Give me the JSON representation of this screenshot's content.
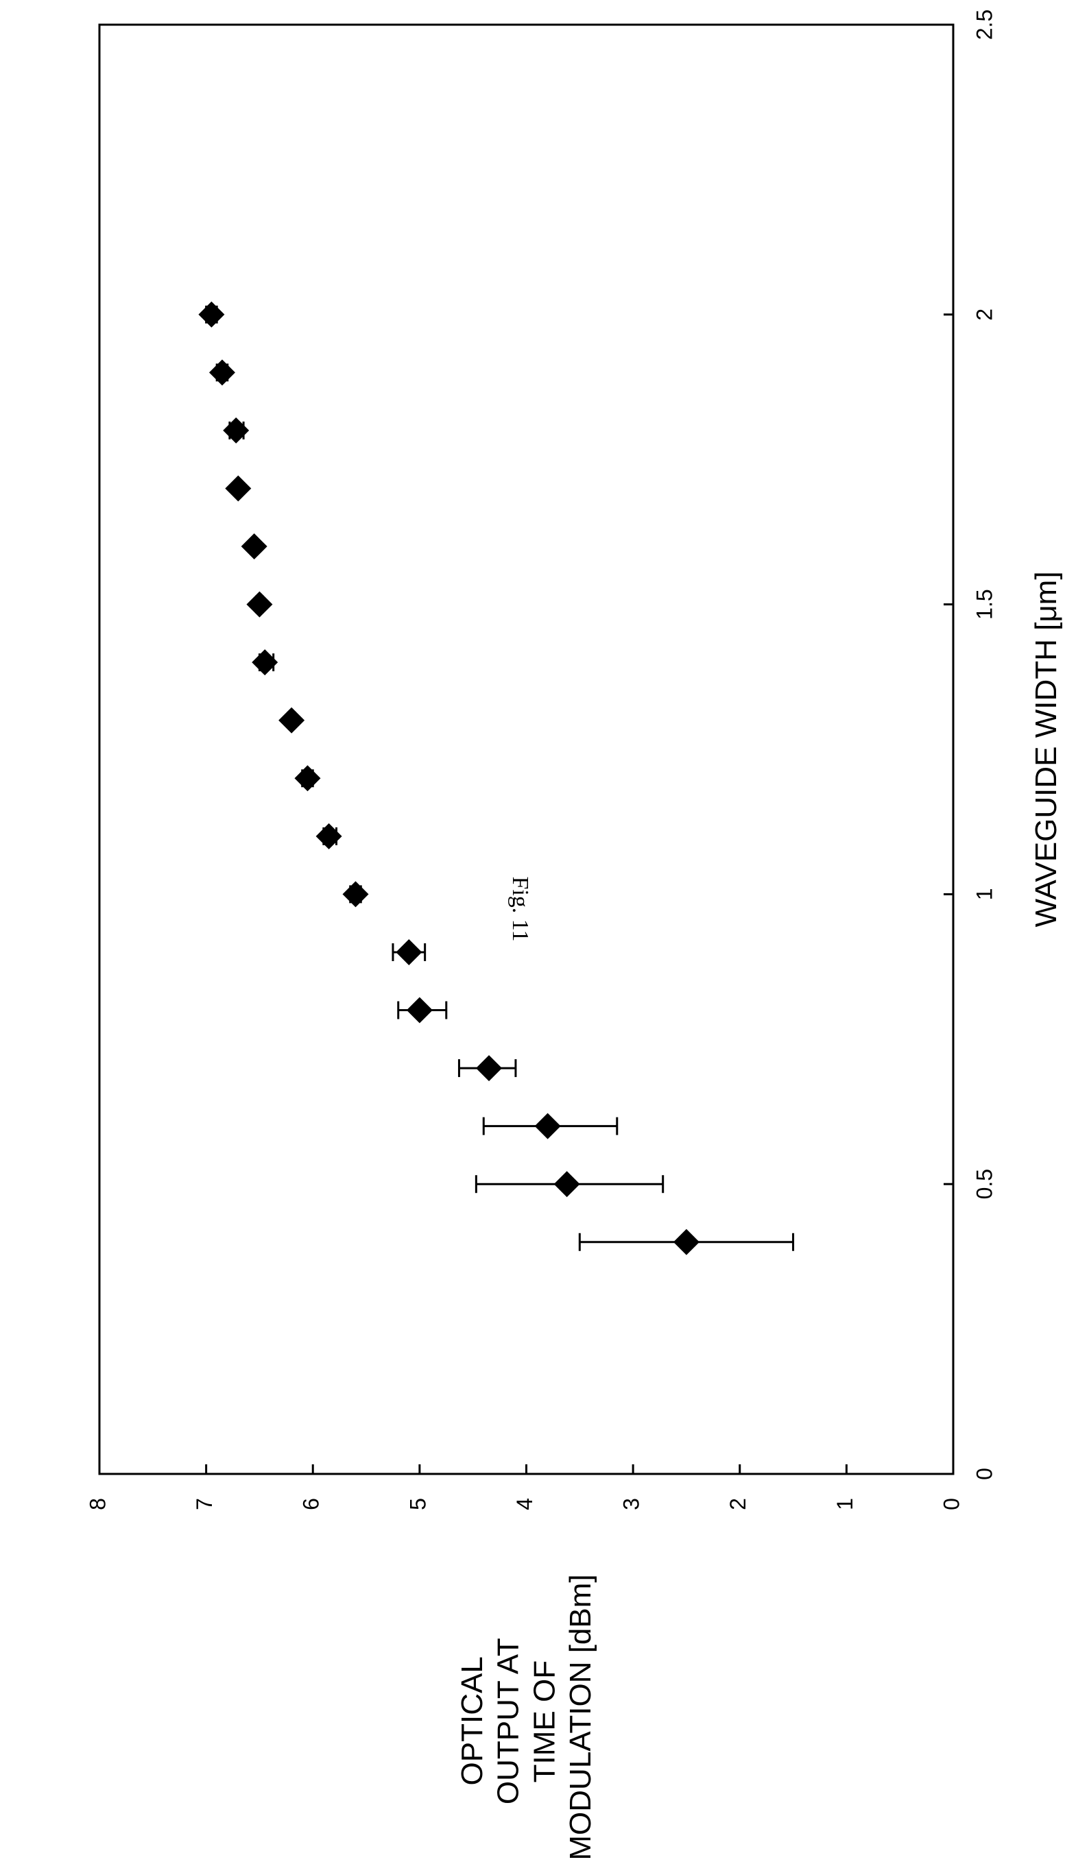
{
  "figure": {
    "title": "Fig. 11"
  },
  "chart_data": {
    "type": "scatter",
    "orientation": "rotated-90-clockwise",
    "title": "",
    "xlabel": "WAVEGUIDE WIDTH [μm]",
    "ylabel_lines": [
      "OPTICAL",
      "OUTPUT AT",
      "TIME OF",
      "MODULATION [dBm]"
    ],
    "xlim": [
      0,
      2.5
    ],
    "ylim": [
      0,
      8
    ],
    "x_ticks": [
      0,
      0.5,
      1,
      1.5,
      2,
      2.5
    ],
    "x_tick_labels": [
      "0",
      "0.5",
      "1",
      "1.5",
      "2",
      "2.5"
    ],
    "y_ticks": [
      0,
      1,
      2,
      3,
      4,
      5,
      6,
      7,
      8
    ],
    "y_tick_labels": [
      "0",
      "1",
      "2",
      "3",
      "4",
      "5",
      "6",
      "7",
      "8"
    ],
    "grid": false,
    "legend": "none",
    "marker": "diamond",
    "series": [
      {
        "points": [
          {
            "x": 0.4,
            "y": 2.5,
            "err_low": 1.5,
            "err_high": 3.5
          },
          {
            "x": 0.5,
            "y": 3.62,
            "err_low": 2.72,
            "err_high": 4.47
          },
          {
            "x": 0.6,
            "y": 3.8,
            "err_low": 3.15,
            "err_high": 4.4
          },
          {
            "x": 0.7,
            "y": 4.35,
            "err_low": 4.1,
            "err_high": 4.63
          },
          {
            "x": 0.8,
            "y": 5.0,
            "err_low": 4.75,
            "err_high": 5.2
          },
          {
            "x": 0.9,
            "y": 5.1,
            "err_low": 4.95,
            "err_high": 5.25
          },
          {
            "x": 1.0,
            "y": 5.6,
            "err_low": 5.55,
            "err_high": 5.65
          },
          {
            "x": 1.1,
            "y": 5.85,
            "err_low": 5.78,
            "err_high": 5.9
          },
          {
            "x": 1.2,
            "y": 6.05,
            "err_low": 6.0,
            "err_high": 6.1
          },
          {
            "x": 1.3,
            "y": 6.2,
            "err_low": 6.17,
            "err_high": 6.23
          },
          {
            "x": 1.4,
            "y": 6.45,
            "err_low": 6.37,
            "err_high": 6.5
          },
          {
            "x": 1.5,
            "y": 6.5,
            "err_low": 6.47,
            "err_high": 6.53
          },
          {
            "x": 1.6,
            "y": 6.55,
            "err_low": 6.52,
            "err_high": 6.58
          },
          {
            "x": 1.7,
            "y": 6.7,
            "err_low": 6.67,
            "err_high": 6.73
          },
          {
            "x": 1.8,
            "y": 6.72,
            "err_low": 6.65,
            "err_high": 6.78
          },
          {
            "x": 1.9,
            "y": 6.85,
            "err_low": 6.8,
            "err_high": 6.9
          },
          {
            "x": 2.0,
            "y": 6.95,
            "err_low": 6.9,
            "err_high": 7.0
          }
        ]
      }
    ]
  }
}
